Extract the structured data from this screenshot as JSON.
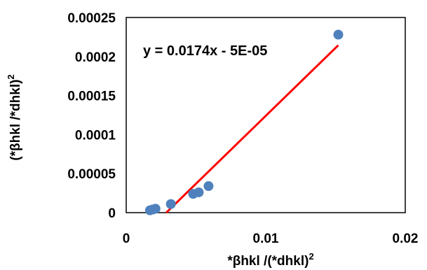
{
  "chart_data": {
    "type": "scatter",
    "title": "",
    "xlabel": "*βhkl /(*dhkl)",
    "xlabel_sup": "2",
    "ylabel": "(*βhkl /*dhkl)",
    "ylabel_sup": "2",
    "xlim": [
      0,
      0.02
    ],
    "ylim": [
      0,
      0.00025
    ],
    "x_ticks": [
      0,
      0.01,
      0.02
    ],
    "x_tick_labels": [
      "0",
      "0.01",
      "0.02"
    ],
    "y_ticks": [
      0,
      5e-05,
      0.0001,
      0.00015,
      0.0002,
      0.00025
    ],
    "y_tick_labels": [
      "0",
      "0.00005",
      "0.0001",
      "0.00015",
      "0.0002",
      "0.00025"
    ],
    "grid": false,
    "legend": false,
    "series": [
      {
        "color": "#4f81bd",
        "x": [
          0.0017,
          0.0019,
          0.0021,
          0.0032,
          0.0048,
          0.0052,
          0.0059,
          0.0152
        ],
        "y": [
          3e-06,
          4e-06,
          5e-06,
          1.1e-05,
          2.4e-05,
          2.6e-05,
          3.4e-05,
          0.000228
        ]
      }
    ],
    "trendline": {
      "color": "#ff0000",
      "slope": 0.0174,
      "intercept": -5e-05,
      "x_range": [
        0.00287,
        0.0152
      ],
      "label": "y = 0.0174x - 5E-05"
    }
  }
}
